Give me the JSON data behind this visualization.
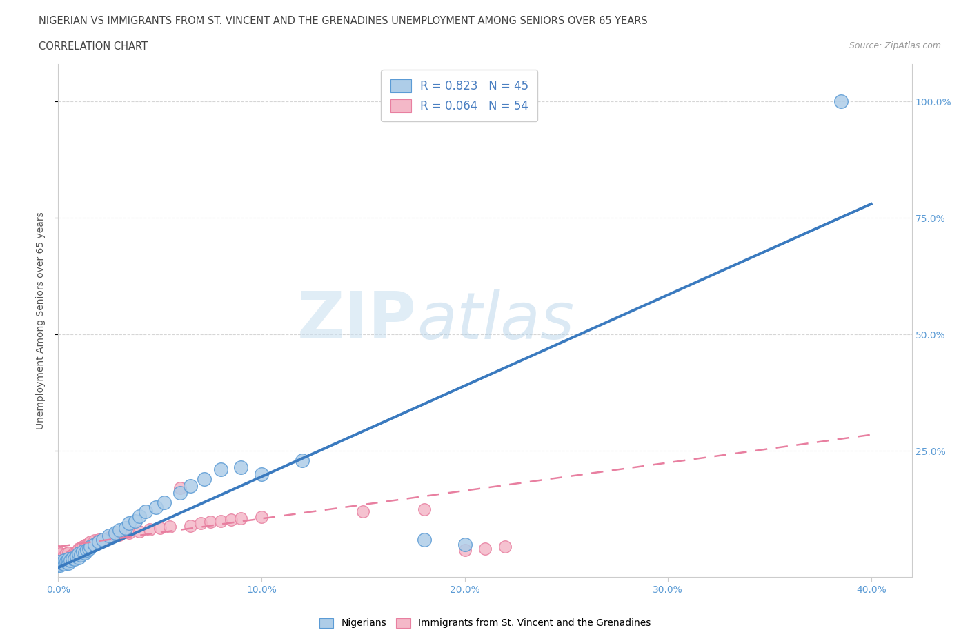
{
  "title_line1": "NIGERIAN VS IMMIGRANTS FROM ST. VINCENT AND THE GRENADINES UNEMPLOYMENT AMONG SENIORS OVER 65 YEARS",
  "title_line2": "CORRELATION CHART",
  "source_text": "Source: ZipAtlas.com",
  "ylabel": "Unemployment Among Seniors over 65 years",
  "xlim": [
    0.0,
    0.42
  ],
  "ylim": [
    -0.02,
    1.08
  ],
  "xtick_labels": [
    "0.0%",
    "10.0%",
    "20.0%",
    "30.0%",
    "40.0%"
  ],
  "xtick_values": [
    0.0,
    0.1,
    0.2,
    0.3,
    0.4
  ],
  "ytick_labels": [
    "25.0%",
    "50.0%",
    "75.0%",
    "100.0%"
  ],
  "ytick_values": [
    0.25,
    0.5,
    0.75,
    1.0
  ],
  "blue_R": 0.823,
  "blue_N": 45,
  "pink_R": 0.064,
  "pink_N": 54,
  "blue_color": "#aecde8",
  "pink_color": "#f4b8c8",
  "blue_edge": "#5b9bd5",
  "pink_edge": "#e87fa0",
  "trend_blue": "#3a7abf",
  "trend_pink": "#e87fa0",
  "watermark_zip": "ZIP",
  "watermark_atlas": "atlas",
  "legend_label_blue": "Nigerians",
  "legend_label_pink": "Immigrants from St. Vincent and the Grenadines",
  "blue_trend_x0": 0.0,
  "blue_trend_y0": 0.0,
  "blue_trend_x1": 0.4,
  "blue_trend_y1": 0.78,
  "pink_trend_x0": 0.0,
  "pink_trend_y0": 0.045,
  "pink_trend_x1": 0.4,
  "pink_trend_y1": 0.285,
  "blue_pts_x": [
    0.0,
    0.0,
    0.0,
    0.001,
    0.002,
    0.003,
    0.003,
    0.004,
    0.005,
    0.005,
    0.006,
    0.007,
    0.008,
    0.009,
    0.01,
    0.01,
    0.011,
    0.012,
    0.013,
    0.014,
    0.015,
    0.016,
    0.018,
    0.02,
    0.022,
    0.025,
    0.028,
    0.03,
    0.033,
    0.035,
    0.038,
    0.04,
    0.043,
    0.048,
    0.052,
    0.06,
    0.065,
    0.072,
    0.08,
    0.09,
    0.1,
    0.12,
    0.18,
    0.2,
    0.385
  ],
  "blue_pts_y": [
    0.005,
    0.008,
    0.012,
    0.005,
    0.01,
    0.008,
    0.015,
    0.012,
    0.01,
    0.018,
    0.015,
    0.02,
    0.018,
    0.025,
    0.022,
    0.03,
    0.028,
    0.035,
    0.032,
    0.038,
    0.04,
    0.045,
    0.05,
    0.055,
    0.06,
    0.068,
    0.075,
    0.08,
    0.085,
    0.095,
    0.1,
    0.11,
    0.12,
    0.13,
    0.14,
    0.16,
    0.175,
    0.19,
    0.21,
    0.215,
    0.2,
    0.23,
    0.06,
    0.05,
    1.0
  ],
  "pink_pts_x": [
    0.0,
    0.0,
    0.0,
    0.0,
    0.0,
    0.0,
    0.0,
    0.001,
    0.001,
    0.001,
    0.001,
    0.002,
    0.002,
    0.003,
    0.003,
    0.004,
    0.004,
    0.005,
    0.005,
    0.006,
    0.007,
    0.008,
    0.009,
    0.01,
    0.011,
    0.012,
    0.013,
    0.014,
    0.015,
    0.016,
    0.018,
    0.02,
    0.022,
    0.025,
    0.028,
    0.03,
    0.035,
    0.04,
    0.045,
    0.05,
    0.055,
    0.06,
    0.065,
    0.07,
    0.075,
    0.08,
    0.085,
    0.09,
    0.1,
    0.15,
    0.18,
    0.2,
    0.21,
    0.22
  ],
  "pink_pts_y": [
    0.005,
    0.008,
    0.012,
    0.018,
    0.022,
    0.028,
    0.035,
    0.01,
    0.015,
    0.022,
    0.03,
    0.012,
    0.02,
    0.015,
    0.025,
    0.018,
    0.03,
    0.02,
    0.032,
    0.025,
    0.028,
    0.032,
    0.035,
    0.04,
    0.042,
    0.045,
    0.048,
    0.05,
    0.052,
    0.055,
    0.058,
    0.06,
    0.062,
    0.065,
    0.068,
    0.07,
    0.075,
    0.078,
    0.082,
    0.085,
    0.088,
    0.17,
    0.09,
    0.095,
    0.098,
    0.1,
    0.103,
    0.105,
    0.108,
    0.12,
    0.125,
    0.038,
    0.04,
    0.045
  ]
}
